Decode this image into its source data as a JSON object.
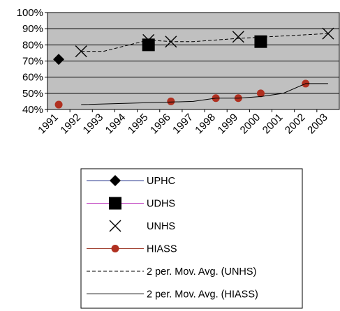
{
  "chart_data": {
    "type": "scatter",
    "title": "",
    "xlabel": "",
    "ylabel": "",
    "categories": [
      "1991",
      "1992",
      "1993",
      "1994",
      "1995",
      "1996",
      "1997",
      "1998",
      "1999",
      "2000",
      "2001",
      "2002",
      "2003"
    ],
    "ylim": [
      0.4,
      1.0
    ],
    "y_tick_labels": [
      "40%",
      "50%",
      "60%",
      "70%",
      "80%",
      "90%",
      "100%"
    ],
    "y_tick_values": [
      0.4,
      0.5,
      0.6,
      0.7,
      0.8,
      0.9,
      1.0
    ],
    "grid": true,
    "plot_background": "#c0c0c0",
    "legend_position": "bottom",
    "series": [
      {
        "name": "UPHC",
        "marker": "diamond",
        "line": "none",
        "color": "#000000",
        "x": [
          "1991"
        ],
        "y": [
          0.71
        ]
      },
      {
        "name": "UDHS",
        "marker": "square",
        "line": "none",
        "color": "#000000",
        "x": [
          "1995",
          "2000"
        ],
        "y": [
          0.8,
          0.82
        ]
      },
      {
        "name": "UNHS",
        "marker": "x",
        "line": "none",
        "color": "#000000",
        "x": [
          "1992",
          "1995",
          "1996",
          "1999",
          "2003"
        ],
        "y": [
          0.76,
          0.83,
          0.82,
          0.85,
          0.87
        ]
      },
      {
        "name": "HIASS",
        "marker": "circle",
        "line": "none",
        "color": "#b03020",
        "x": [
          "1991",
          "1996",
          "1998",
          "1999",
          "2000",
          "2002"
        ],
        "y": [
          0.43,
          0.45,
          0.47,
          0.47,
          0.5,
          0.56
        ]
      },
      {
        "name": "2 per. Mov. Avg. (UNHS)",
        "marker": "none",
        "line": "dashed",
        "color": "#000000",
        "x": [
          "1992",
          "1993",
          "1995",
          "1996",
          "1997",
          "1999",
          "2003"
        ],
        "y": [
          0.76,
          0.76,
          0.83,
          0.82,
          0.82,
          0.84,
          0.87
        ]
      },
      {
        "name": "2 per. Mov. Avg. (HIASS)",
        "marker": "none",
        "line": "solid",
        "color": "#000000",
        "x": [
          "1992",
          "1997",
          "1998",
          "1999",
          "2000",
          "2001",
          "2002",
          "2003"
        ],
        "y": [
          0.43,
          0.45,
          0.47,
          0.47,
          0.48,
          0.5,
          0.56,
          0.56
        ]
      }
    ]
  }
}
